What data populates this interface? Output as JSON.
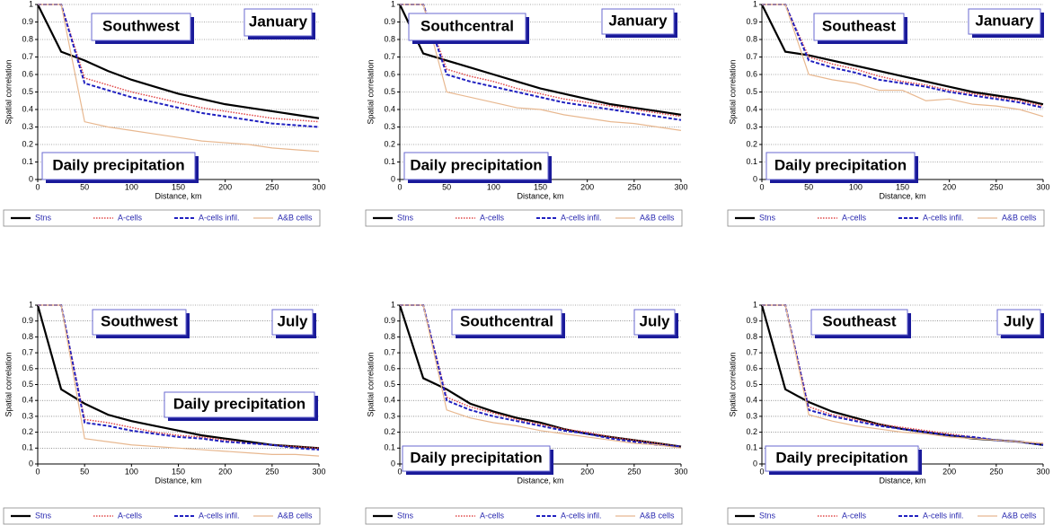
{
  "chart_data": [
    {
      "type": "line",
      "region": "Southwest",
      "month": "January",
      "annotation": "Daily precipitation",
      "xlabel": "Distance, km",
      "ylabel": "Spatial correlation",
      "x": [
        0,
        25,
        50,
        75,
        100,
        125,
        150,
        175,
        200,
        225,
        250,
        275,
        300
      ],
      "series": [
        {
          "name": "Stns",
          "color": "#000000",
          "values": [
            1,
            0.73,
            0.68,
            0.62,
            0.57,
            0.53,
            0.49,
            0.46,
            0.43,
            0.41,
            0.39,
            0.37,
            0.35
          ]
        },
        {
          "name": "A-cells",
          "color": "#e04848",
          "values": [
            1,
            1,
            0.58,
            0.54,
            0.5,
            0.47,
            0.44,
            0.41,
            0.39,
            0.37,
            0.35,
            0.34,
            0.33
          ]
        },
        {
          "name": "A-cells infil.",
          "color": "#2020c0",
          "values": [
            1,
            1,
            0.55,
            0.51,
            0.47,
            0.44,
            0.41,
            0.38,
            0.36,
            0.34,
            0.32,
            0.31,
            0.3
          ]
        },
        {
          "name": "A&B cells",
          "color": "#e8b890",
          "values": [
            1,
            1,
            0.33,
            0.3,
            0.28,
            0.26,
            0.24,
            0.22,
            0.21,
            0.2,
            0.18,
            0.17,
            0.16
          ]
        }
      ],
      "xlim": [
        0,
        300
      ],
      "ylim": [
        0,
        1
      ],
      "xticks": [
        0,
        50,
        100,
        150,
        200,
        250,
        300
      ],
      "yticks": [
        0,
        0.1,
        0.2,
        0.3,
        0.4,
        0.5,
        0.6,
        0.7,
        0.8,
        0.9,
        1
      ],
      "grid": true
    },
    {
      "type": "line",
      "region": "Southcentral",
      "month": "January",
      "annotation": "Daily precipitation",
      "xlabel": "Distance, km",
      "ylabel": "Spatial correlation",
      "x": [
        0,
        25,
        50,
        75,
        100,
        125,
        150,
        175,
        200,
        225,
        250,
        275,
        300
      ],
      "series": [
        {
          "name": "Stns",
          "color": "#000000",
          "values": [
            1,
            0.72,
            0.68,
            0.64,
            0.6,
            0.56,
            0.52,
            0.49,
            0.46,
            0.43,
            0.41,
            0.39,
            0.37
          ]
        },
        {
          "name": "A-cells",
          "color": "#e04848",
          "values": [
            1,
            1,
            0.63,
            0.59,
            0.56,
            0.52,
            0.49,
            0.46,
            0.44,
            0.42,
            0.4,
            0.38,
            0.36
          ]
        },
        {
          "name": "A-cells infil.",
          "color": "#2020c0",
          "values": [
            1,
            1,
            0.6,
            0.56,
            0.53,
            0.5,
            0.47,
            0.44,
            0.42,
            0.4,
            0.38,
            0.36,
            0.34
          ]
        },
        {
          "name": "A&B cells",
          "color": "#e8b890",
          "values": [
            1,
            1,
            0.5,
            0.47,
            0.44,
            0.41,
            0.4,
            0.37,
            0.35,
            0.33,
            0.32,
            0.3,
            0.28
          ]
        }
      ],
      "xlim": [
        0,
        300
      ],
      "ylim": [
        0,
        1
      ],
      "xticks": [
        0,
        50,
        100,
        150,
        200,
        250,
        300
      ],
      "yticks": [
        0,
        0.1,
        0.2,
        0.3,
        0.4,
        0.5,
        0.6,
        0.7,
        0.8,
        0.9,
        1
      ],
      "grid": true
    },
    {
      "type": "line",
      "region": "Southeast",
      "month": "January",
      "annotation": "Daily precipitation",
      "xlabel": "Distance, km",
      "ylabel": "Spatial correlation",
      "x": [
        0,
        25,
        50,
        75,
        100,
        125,
        150,
        175,
        200,
        225,
        250,
        275,
        300
      ],
      "series": [
        {
          "name": "Stns",
          "color": "#000000",
          "values": [
            1,
            0.73,
            0.71,
            0.68,
            0.65,
            0.62,
            0.59,
            0.56,
            0.53,
            0.5,
            0.48,
            0.46,
            0.43
          ]
        },
        {
          "name": "A-cells",
          "color": "#e04848",
          "values": [
            1,
            1,
            0.7,
            0.66,
            0.63,
            0.59,
            0.56,
            0.54,
            0.51,
            0.49,
            0.47,
            0.45,
            0.42
          ]
        },
        {
          "name": "A-cells infil.",
          "color": "#2020c0",
          "values": [
            1,
            1,
            0.68,
            0.64,
            0.61,
            0.57,
            0.55,
            0.53,
            0.5,
            0.48,
            0.46,
            0.44,
            0.41
          ]
        },
        {
          "name": "A&B cells",
          "color": "#e8b890",
          "values": [
            1,
            1,
            0.6,
            0.57,
            0.55,
            0.51,
            0.51,
            0.45,
            0.46,
            0.43,
            0.42,
            0.4,
            0.36
          ]
        }
      ],
      "xlim": [
        0,
        300
      ],
      "ylim": [
        0,
        1
      ],
      "xticks": [
        0,
        50,
        100,
        150,
        200,
        250,
        300
      ],
      "yticks": [
        0,
        0.1,
        0.2,
        0.3,
        0.4,
        0.5,
        0.6,
        0.7,
        0.8,
        0.9,
        1
      ],
      "grid": true
    },
    {
      "type": "line",
      "region": "Southwest",
      "month": "July",
      "annotation": "Daily precipitation",
      "xlabel": "Distance, km",
      "ylabel": "Spatial correlation",
      "x": [
        0,
        25,
        50,
        75,
        100,
        125,
        150,
        175,
        200,
        225,
        250,
        275,
        300
      ],
      "series": [
        {
          "name": "Stns",
          "color": "#000000",
          "values": [
            1,
            0.47,
            0.38,
            0.31,
            0.27,
            0.24,
            0.21,
            0.18,
            0.16,
            0.14,
            0.12,
            0.11,
            0.1
          ]
        },
        {
          "name": "A-cells",
          "color": "#e04848",
          "values": [
            1,
            1,
            0.28,
            0.26,
            0.23,
            0.2,
            0.18,
            0.17,
            0.15,
            0.13,
            0.12,
            0.11,
            0.1
          ]
        },
        {
          "name": "A-cells infil.",
          "color": "#2020c0",
          "values": [
            1,
            1,
            0.26,
            0.24,
            0.21,
            0.19,
            0.17,
            0.16,
            0.14,
            0.13,
            0.12,
            0.1,
            0.09
          ]
        },
        {
          "name": "A&B cells",
          "color": "#e8b890",
          "values": [
            1,
            1,
            0.16,
            0.14,
            0.12,
            0.11,
            0.1,
            0.09,
            0.08,
            0.07,
            0.06,
            0.06,
            0.05
          ]
        }
      ],
      "xlim": [
        0,
        300
      ],
      "ylim": [
        0,
        1
      ],
      "xticks": [
        0,
        50,
        100,
        150,
        200,
        250,
        300
      ],
      "yticks": [
        0,
        0.1,
        0.2,
        0.3,
        0.4,
        0.5,
        0.6,
        0.7,
        0.8,
        0.9,
        1
      ],
      "grid": true
    },
    {
      "type": "line",
      "region": "Southcentral",
      "month": "July",
      "annotation": "Daily precipitation",
      "xlabel": "Distance, km",
      "ylabel": "Spatial correlation",
      "x": [
        0,
        25,
        50,
        75,
        100,
        125,
        150,
        175,
        200,
        225,
        250,
        275,
        300
      ],
      "series": [
        {
          "name": "Stns",
          "color": "#000000",
          "values": [
            1,
            0.54,
            0.47,
            0.38,
            0.33,
            0.29,
            0.26,
            0.22,
            0.19,
            0.17,
            0.15,
            0.13,
            0.11
          ]
        },
        {
          "name": "A-cells",
          "color": "#e04848",
          "values": [
            1,
            1,
            0.42,
            0.36,
            0.32,
            0.28,
            0.25,
            0.22,
            0.2,
            0.17,
            0.15,
            0.13,
            0.11
          ]
        },
        {
          "name": "A-cells infil.",
          "color": "#2020c0",
          "values": [
            1,
            1,
            0.4,
            0.34,
            0.3,
            0.27,
            0.24,
            0.21,
            0.19,
            0.16,
            0.14,
            0.12,
            0.11
          ]
        },
        {
          "name": "A&B cells",
          "color": "#e8b890",
          "values": [
            1,
            1,
            0.34,
            0.29,
            0.26,
            0.24,
            0.21,
            0.19,
            0.17,
            0.15,
            0.13,
            0.12,
            0.1
          ]
        }
      ],
      "xlim": [
        0,
        300
      ],
      "ylim": [
        0,
        1
      ],
      "xticks": [
        0,
        50,
        100,
        150,
        200,
        250,
        300
      ],
      "yticks": [
        0,
        0.1,
        0.2,
        0.3,
        0.4,
        0.5,
        0.6,
        0.7,
        0.8,
        0.9,
        1
      ],
      "grid": true
    },
    {
      "type": "line",
      "region": "Southeast",
      "month": "July",
      "annotation": "Daily precipitation",
      "xlabel": "Distance, km",
      "ylabel": "Spatial correlation",
      "x": [
        0,
        25,
        50,
        75,
        100,
        125,
        150,
        175,
        200,
        225,
        250,
        275,
        300
      ],
      "series": [
        {
          "name": "Stns",
          "color": "#000000",
          "values": [
            1,
            0.47,
            0.39,
            0.33,
            0.29,
            0.25,
            0.22,
            0.2,
            0.18,
            0.16,
            0.15,
            0.14,
            0.12
          ]
        },
        {
          "name": "A-cells",
          "color": "#e04848",
          "values": [
            1,
            1,
            0.36,
            0.31,
            0.28,
            0.25,
            0.23,
            0.21,
            0.19,
            0.17,
            0.15,
            0.14,
            0.13
          ]
        },
        {
          "name": "A-cells infil.",
          "color": "#2020c0",
          "values": [
            1,
            1,
            0.34,
            0.3,
            0.27,
            0.24,
            0.22,
            0.2,
            0.18,
            0.17,
            0.15,
            0.14,
            0.12
          ]
        },
        {
          "name": "A&B cells",
          "color": "#e8b890",
          "values": [
            1,
            1,
            0.31,
            0.27,
            0.24,
            0.22,
            0.2,
            0.19,
            0.17,
            0.16,
            0.15,
            0.14,
            0.13
          ]
        }
      ],
      "xlim": [
        0,
        300
      ],
      "ylim": [
        0,
        1
      ],
      "xticks": [
        0,
        50,
        100,
        150,
        200,
        250,
        300
      ],
      "yticks": [
        0,
        0.1,
        0.2,
        0.3,
        0.4,
        0.5,
        0.6,
        0.7,
        0.8,
        0.9,
        1
      ],
      "grid": true
    }
  ]
}
